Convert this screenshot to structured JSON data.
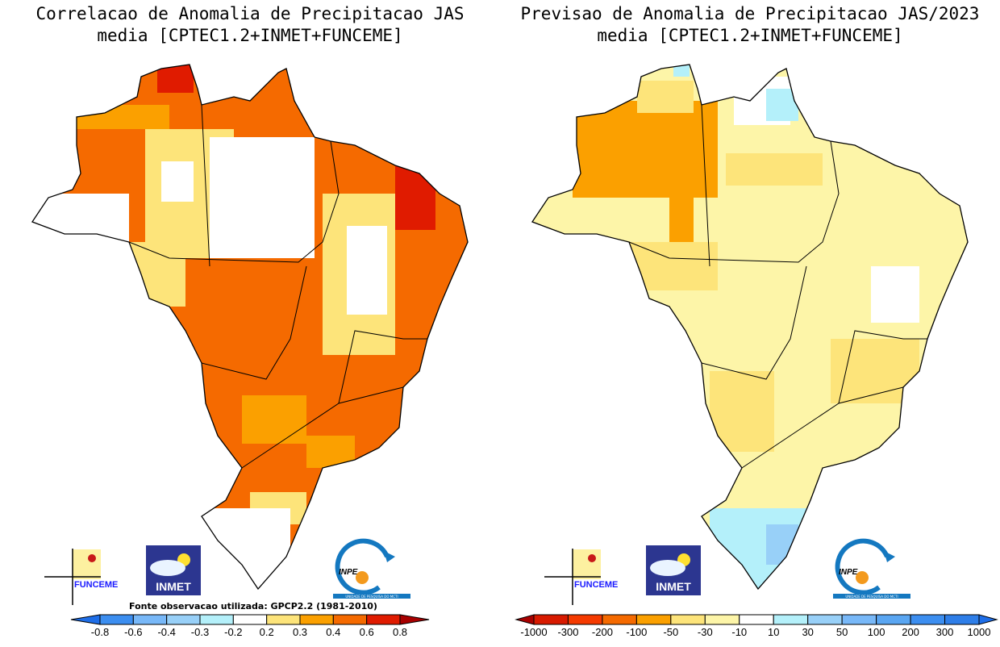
{
  "left_panel": {
    "title_line1": "Correlacao de Anomalia de Precipitacao JAS",
    "title_line2": "media [CPTEC1.2+INMET+FUNCEME]",
    "source_note": "Fonte observacao utilizada: GPCP2.2 (1981-2010)",
    "colorbar": {
      "ticks": [
        "-0.8",
        "-0.6",
        "-0.4",
        "-0.3",
        "-0.2",
        "0.2",
        "0.3",
        "0.4",
        "0.6",
        "0.8"
      ],
      "colors": [
        "#1e6ee8",
        "#3c8ef0",
        "#78b8f8",
        "#98d0f8",
        "#b4f0fa",
        "#ffffff",
        "#fde47a",
        "#fba000",
        "#f56a00",
        "#e01b00",
        "#a80000"
      ]
    }
  },
  "right_panel": {
    "title_line1": "Previsao de Anomalia de Precipitacao JAS/2023",
    "title_line2": "media [CPTEC1.2+INMET+FUNCEME]",
    "colorbar": {
      "ticks": [
        "-1000",
        "-300",
        "-200",
        "-100",
        "-50",
        "-30",
        "-10",
        "10",
        "30",
        "50",
        "100",
        "200",
        "300",
        "1000"
      ],
      "colors": [
        "#a80000",
        "#d81a00",
        "#f53a00",
        "#f56a00",
        "#fba000",
        "#fde47a",
        "#fdf5a8",
        "#ffffff",
        "#b4f0fa",
        "#98d0f8",
        "#78b8f8",
        "#5aa6f2",
        "#3c8ef0",
        "#2e7ee8",
        "#1e6ee8"
      ]
    }
  },
  "logos": {
    "funceme": "FUNCEME",
    "inmet": "INMET",
    "inpe": "INPE",
    "inpe_sub": "UNIDADE DE PESQUISA DO MCTI"
  }
}
